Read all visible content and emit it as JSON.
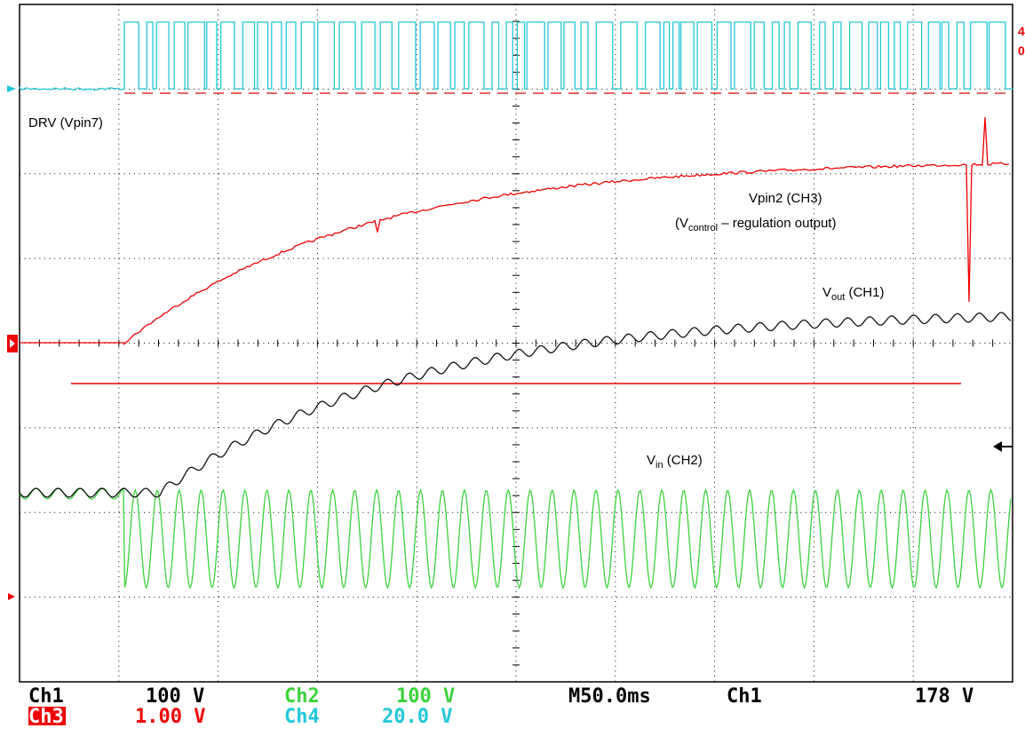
{
  "annotations": {
    "drv": "DRV (Vpin7)",
    "vpin2": {
      "line1": "Vpin2 (CH3)",
      "prefix": "(V",
      "sub": "control",
      "suffix": " – regulation output)"
    },
    "vout": {
      "prefix": "V",
      "sub": "out",
      "suffix": " (CH1)"
    },
    "vin": {
      "prefix": "V",
      "sub": "in",
      "suffix": " (CH2)"
    }
  },
  "status": {
    "row1": [
      "Ch1",
      "100 V",
      "Ch2",
      "100 V",
      "M50.0ms",
      "Ch1",
      "178 V"
    ],
    "row2": [
      "Ch3",
      "1.00 V",
      "Ch4",
      "20.0 V"
    ]
  }
}
